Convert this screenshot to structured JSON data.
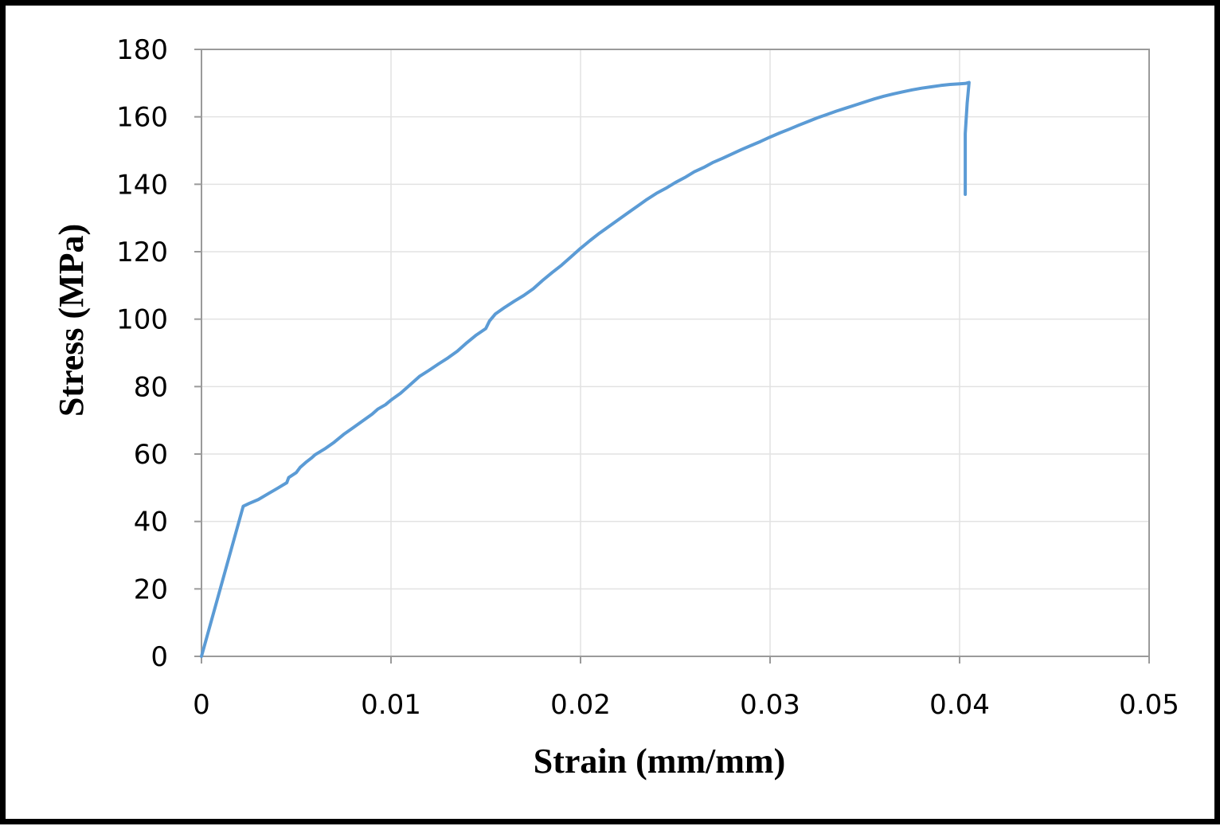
{
  "chart_data": {
    "type": "line",
    "title": "",
    "xlabel": "Strain (mm/mm)",
    "ylabel": "Stress (MPa)",
    "xlim": [
      0,
      0.05
    ],
    "ylim": [
      0,
      180
    ],
    "x_ticks": [
      0,
      0.01,
      0.02,
      0.03,
      0.04,
      0.05
    ],
    "x_tick_labels": [
      "0",
      "0.01",
      "0.02",
      "0.03",
      "0.04",
      "0.05"
    ],
    "y_ticks": [
      0,
      20,
      40,
      60,
      80,
      100,
      120,
      140,
      160,
      180
    ],
    "y_tick_labels": [
      "0",
      "20",
      "40",
      "60",
      "80",
      "100",
      "120",
      "140",
      "160",
      "180"
    ],
    "grid": true,
    "legend": "none",
    "series": [
      {
        "color": "#5b9bd5",
        "x": [
          0,
          0.0022,
          0.0025,
          0.003,
          0.0036,
          0.004,
          0.0045,
          0.0046,
          0.005,
          0.0052,
          0.0055,
          0.0058,
          0.006,
          0.0065,
          0.007,
          0.0075,
          0.008,
          0.0085,
          0.009,
          0.0093,
          0.0097,
          0.01,
          0.0105,
          0.011,
          0.0115,
          0.012,
          0.0125,
          0.013,
          0.0135,
          0.014,
          0.0145,
          0.015,
          0.0152,
          0.0155,
          0.016,
          0.0165,
          0.017,
          0.0175,
          0.018,
          0.0185,
          0.019,
          0.0195,
          0.02,
          0.0205,
          0.021,
          0.0215,
          0.022,
          0.0225,
          0.023,
          0.0235,
          0.024,
          0.0245,
          0.025,
          0.0255,
          0.026,
          0.0265,
          0.027,
          0.0275,
          0.028,
          0.0285,
          0.029,
          0.0295,
          0.03,
          0.0305,
          0.031,
          0.0315,
          0.032,
          0.0325,
          0.033,
          0.0335,
          0.034,
          0.0345,
          0.035,
          0.0355,
          0.036,
          0.0365,
          0.037,
          0.0375,
          0.038,
          0.0385,
          0.039,
          0.0395,
          0.04,
          0.0403,
          0.0405,
          0.0404,
          0.0403,
          0.0403,
          0.0403
        ],
        "y": [
          0,
          44.5,
          45.3,
          46.5,
          48.5,
          49.8,
          51.5,
          53,
          54.5,
          56,
          57.5,
          58.8,
          59.8,
          61.5,
          63.5,
          65.8,
          67.8,
          69.8,
          71.8,
          73.3,
          74.6,
          76,
          78,
          80.5,
          83,
          84.8,
          86.7,
          88.5,
          90.5,
          93,
          95.3,
          97.2,
          99.5,
          101.5,
          103.5,
          105.3,
          107,
          109,
          111.5,
          113.8,
          116,
          118.5,
          121,
          123.3,
          125.5,
          127.5,
          129.5,
          131.5,
          133.5,
          135.5,
          137.3,
          138.8,
          140.5,
          142,
          143.7,
          145,
          146.5,
          147.7,
          149,
          150.3,
          151.5,
          152.7,
          154,
          155.2,
          156.3,
          157.5,
          158.6,
          159.7,
          160.7,
          161.7,
          162.6,
          163.5,
          164.4,
          165.3,
          166.1,
          166.8,
          167.4,
          168,
          168.5,
          168.9,
          169.3,
          169.6,
          169.8,
          169.9,
          170.2,
          164,
          155,
          145,
          137
        ]
      }
    ]
  }
}
